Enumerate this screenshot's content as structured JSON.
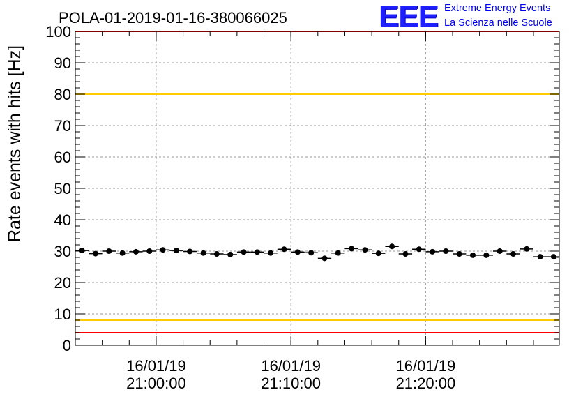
{
  "title": "POLA-01-2019-01-16-380066025",
  "logo": {
    "mark": "EEE",
    "line1": "Extreme Energy Events",
    "line2": "La Scienza nelle Scuole",
    "color": "#0000ee"
  },
  "chart_data": {
    "type": "scatter",
    "title": "POLA-01-2019-01-16-380066025",
    "xlabel": "",
    "ylabel": "Rate events with hits [Hz]",
    "ylim": [
      0,
      100
    ],
    "xlim": [
      "2019-01-16 20:54:00",
      "2019-01-16 21:29:55"
    ],
    "x_ticks": [
      {
        "date": "16/01/19",
        "time": "21:00:00",
        "value": "2019-01-16 21:00:00"
      },
      {
        "date": "16/01/19",
        "time": "21:10:00",
        "value": "2019-01-16 21:10:00"
      },
      {
        "date": "16/01/19",
        "time": "21:20:00",
        "value": "2019-01-16 21:20:00"
      }
    ],
    "y_ticks": [
      0,
      10,
      20,
      30,
      40,
      50,
      60,
      70,
      80,
      90,
      100
    ],
    "grid": true,
    "reference_lines": [
      {
        "y": 100,
        "color": "#ff0000"
      },
      {
        "y": 80,
        "color": "#ffcc00"
      },
      {
        "y": 8,
        "color": "#ffcc00"
      },
      {
        "y": 4,
        "color": "#ff0000"
      }
    ],
    "marker_color": "#000000",
    "series": [
      {
        "x": [
          "2019-01-16 20:54:30",
          "2019-01-16 20:55:30",
          "2019-01-16 20:56:30",
          "2019-01-16 20:57:30",
          "2019-01-16 20:58:30",
          "2019-01-16 20:59:30",
          "2019-01-16 21:00:30",
          "2019-01-16 21:01:30",
          "2019-01-16 21:02:30",
          "2019-01-16 21:03:30",
          "2019-01-16 21:04:30",
          "2019-01-16 21:05:30",
          "2019-01-16 21:06:30",
          "2019-01-16 21:07:30",
          "2019-01-16 21:08:30",
          "2019-01-16 21:09:30",
          "2019-01-16 21:10:30",
          "2019-01-16 21:11:30",
          "2019-01-16 21:12:30",
          "2019-01-16 21:13:30",
          "2019-01-16 21:14:30",
          "2019-01-16 21:15:30",
          "2019-01-16 21:16:30",
          "2019-01-16 21:17:30",
          "2019-01-16 21:18:30",
          "2019-01-16 21:19:30",
          "2019-01-16 21:20:30",
          "2019-01-16 21:21:30",
          "2019-01-16 21:22:30",
          "2019-01-16 21:23:30",
          "2019-01-16 21:24:30",
          "2019-01-16 21:25:30",
          "2019-01-16 21:26:30",
          "2019-01-16 21:27:30",
          "2019-01-16 21:28:30",
          "2019-01-16 21:29:30"
        ],
        "y": [
          30.2,
          29.2,
          30.0,
          29.4,
          29.8,
          30.0,
          30.4,
          30.2,
          29.9,
          29.4,
          29.1,
          28.9,
          29.7,
          29.7,
          29.4,
          30.6,
          29.7,
          29.5,
          27.7,
          29.4,
          30.8,
          30.4,
          29.3,
          31.5,
          29.1,
          30.6,
          29.8,
          30.0,
          29.1,
          28.7,
          28.7,
          30.0,
          29.1,
          30.7,
          28.2,
          28.2
        ]
      }
    ]
  }
}
